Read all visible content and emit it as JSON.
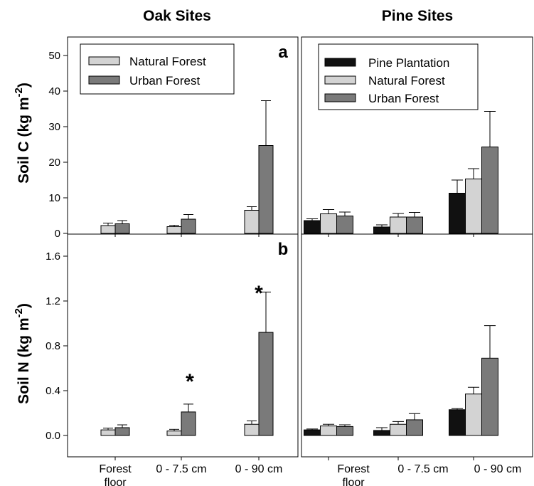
{
  "chart_data": [
    {
      "panel": "top-left",
      "type": "bar",
      "title": "Oak Sites",
      "panel_letter": "a",
      "ylabel_main": "Soil C (kg m",
      "ylabel_sup": "-2",
      "ylabel_end": ")",
      "ylim": [
        0,
        50
      ],
      "yticks": [
        "0",
        "10",
        "20",
        "30",
        "40",
        "50"
      ],
      "categories": [
        "Forest floor",
        "0 - 7.5 cm",
        "0 - 90 cm"
      ],
      "legend_position": "top-left",
      "series": [
        {
          "name": "Natural Forest",
          "color": "#d3d3d3",
          "values": [
            2.2,
            1.9,
            6.5
          ],
          "errors": [
            0.7,
            0.4,
            1.0
          ]
        },
        {
          "name": "Urban Forest",
          "color": "#7a7a7a",
          "values": [
            2.7,
            4.0,
            24.7
          ],
          "errors": [
            0.9,
            1.3,
            12.6
          ]
        }
      ]
    },
    {
      "panel": "top-right",
      "type": "bar",
      "title": "Pine Sites",
      "ylim": [
        0,
        50
      ],
      "categories": [
        "Forest floor",
        "0 - 7.5 cm",
        "0 - 90 cm"
      ],
      "legend_position": "top-left",
      "series": [
        {
          "name": "Pine Plantation",
          "color": "#111111",
          "values": [
            3.6,
            1.8,
            11.3
          ],
          "errors": [
            0.5,
            0.6,
            3.7
          ]
        },
        {
          "name": "Natural Forest",
          "color": "#d3d3d3",
          "values": [
            5.5,
            4.6,
            15.3
          ],
          "errors": [
            1.2,
            1.0,
            2.9
          ]
        },
        {
          "name": "Urban Forest",
          "color": "#7a7a7a",
          "values": [
            4.9,
            4.6,
            24.3
          ],
          "errors": [
            1.1,
            1.3,
            10.0
          ]
        }
      ]
    },
    {
      "panel": "bottom-left",
      "type": "bar",
      "panel_letter": "b",
      "ylabel_main": "Soil N (kg m",
      "ylabel_sup": "-2",
      "ylabel_end": ")",
      "ylim": [
        0,
        1.7
      ],
      "yticks": [
        "0.0",
        "0.4",
        "0.8",
        "1.2",
        "1.6"
      ],
      "categories": [
        "Forest floor",
        "0 - 7.5 cm",
        "0 - 90 cm"
      ],
      "annotations": [
        "*",
        "*"
      ],
      "series": [
        {
          "name": "Natural Forest",
          "color": "#d3d3d3",
          "values": [
            0.05,
            0.04,
            0.1
          ],
          "errors": [
            0.015,
            0.015,
            0.03
          ]
        },
        {
          "name": "Urban Forest",
          "color": "#7a7a7a",
          "values": [
            0.07,
            0.21,
            0.92
          ],
          "errors": [
            0.025,
            0.07,
            0.36
          ]
        }
      ]
    },
    {
      "panel": "bottom-right",
      "type": "bar",
      "ylim": [
        0,
        1.7
      ],
      "categories": [
        "Forest floor",
        "0 - 7.5 cm",
        "0 - 90 cm"
      ],
      "series": [
        {
          "name": "Pine Plantation",
          "color": "#111111",
          "values": [
            0.05,
            0.045,
            0.23
          ],
          "errors": [
            0.008,
            0.025,
            0.01
          ]
        },
        {
          "name": "Natural Forest",
          "color": "#d3d3d3",
          "values": [
            0.085,
            0.1,
            0.37
          ],
          "errors": [
            0.015,
            0.025,
            0.06
          ]
        },
        {
          "name": "Urban Forest",
          "color": "#7a7a7a",
          "values": [
            0.08,
            0.14,
            0.69
          ],
          "errors": [
            0.015,
            0.055,
            0.29
          ]
        }
      ]
    }
  ],
  "x_labels": [
    {
      "line1": "Forest",
      "line2": "floor"
    },
    {
      "line1": "0 - 7.5 cm",
      "line2": ""
    },
    {
      "line1": "0 - 90 cm",
      "line2": ""
    }
  ]
}
